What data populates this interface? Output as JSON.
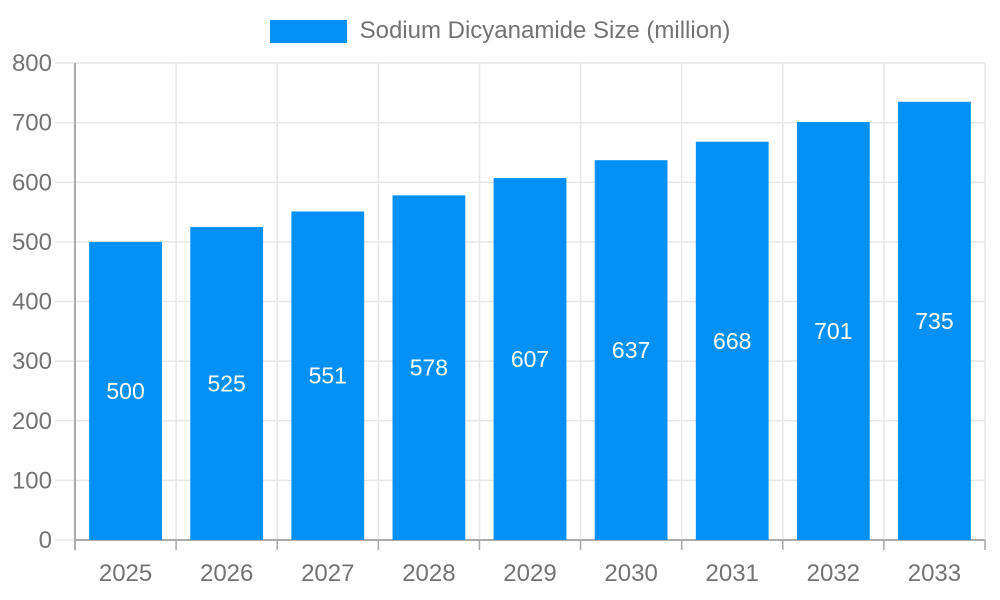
{
  "legend": {
    "swatch_icon": "legend-color-swatch",
    "label": "Sodium Dicyanamide Size (million)"
  },
  "chart_data": {
    "type": "bar",
    "title": "Sodium Dicyanamide Size (million)",
    "series_name": "Sodium Dicyanamide Size (million)",
    "categories": [
      "2025",
      "2026",
      "2027",
      "2028",
      "2029",
      "2030",
      "2031",
      "2032",
      "2033"
    ],
    "values": [
      500,
      525,
      551,
      578,
      607,
      637,
      668,
      701,
      735
    ],
    "data_labels": [
      "500",
      "525",
      "551",
      "578",
      "607",
      "637",
      "668",
      "701",
      "735"
    ],
    "ytick_labels": [
      "0",
      "100",
      "200",
      "300",
      "400",
      "500",
      "600",
      "700",
      "800"
    ],
    "xlabel": "",
    "ylabel": "",
    "ylim": [
      0,
      800
    ],
    "ytick_step": 100,
    "grid": true,
    "legend_position": "top",
    "colors": {
      "bar": "#0590F5",
      "bar_label": "#ffffff",
      "axis_text": "#737373",
      "grid_line": "#e7e7e7",
      "axis_line": "#ababab"
    }
  }
}
